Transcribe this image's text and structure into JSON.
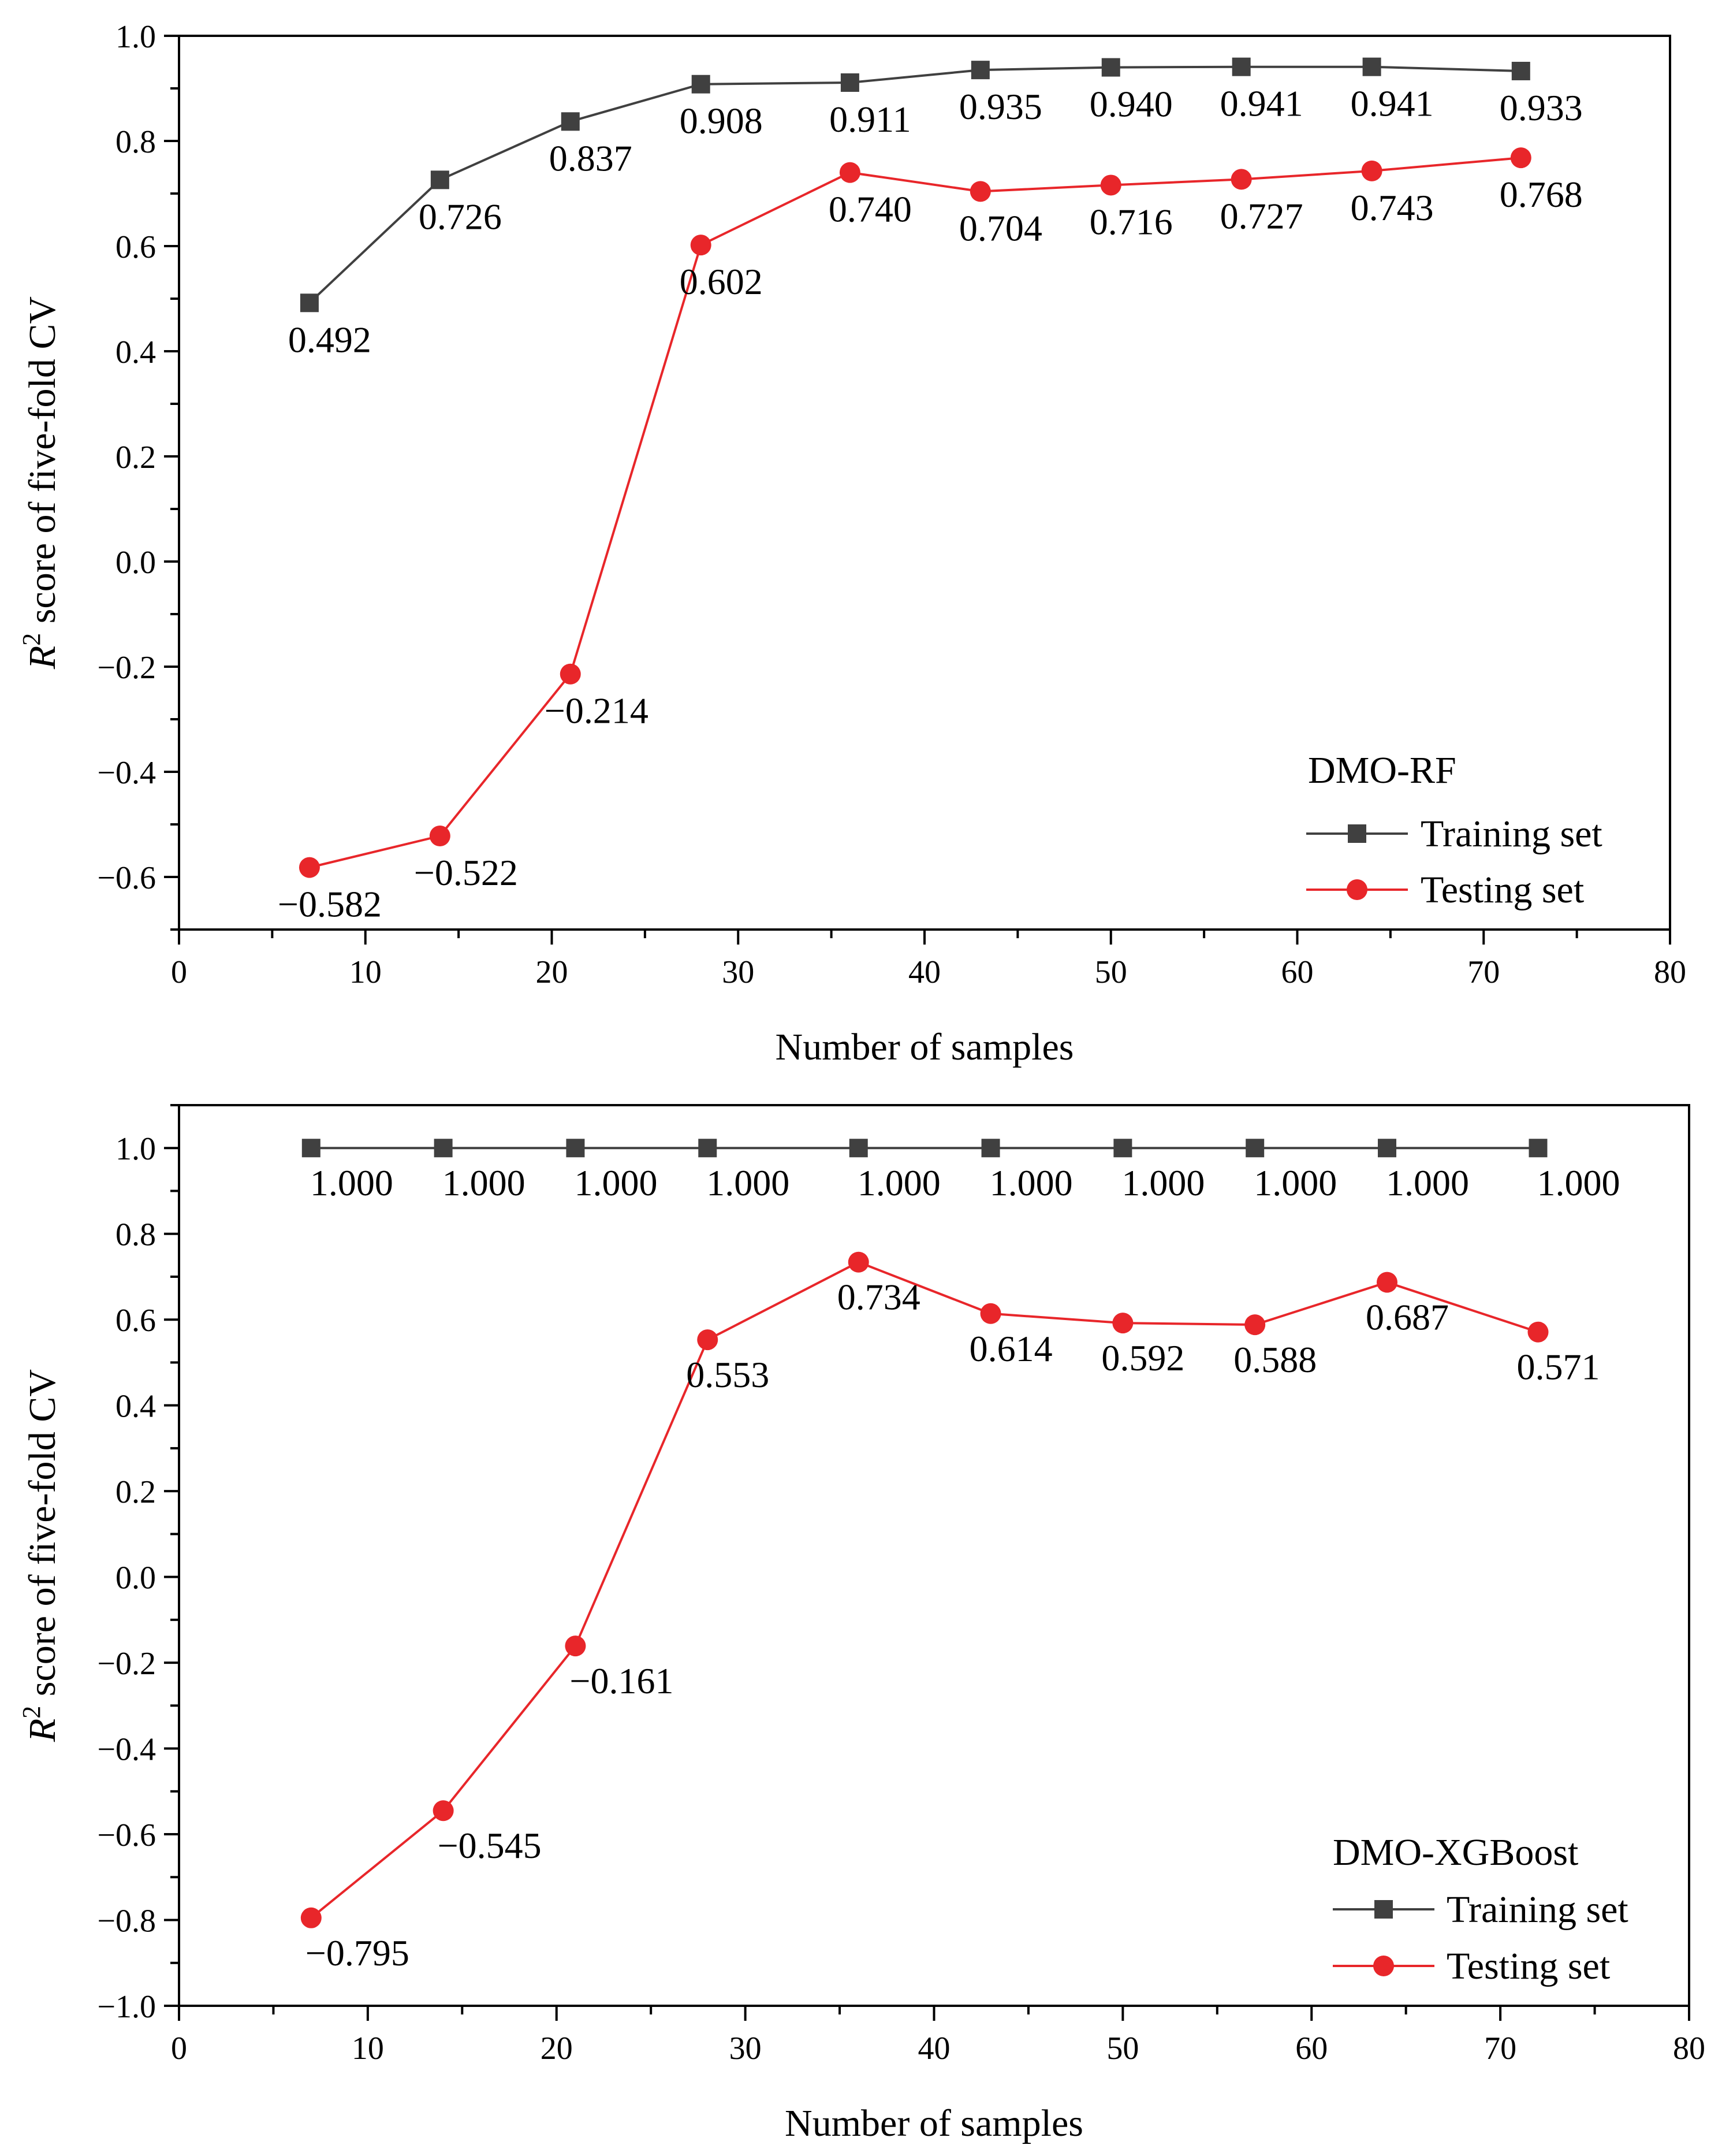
{
  "chart_data": [
    {
      "type": "line",
      "legend_title": "DMO-RF",
      "xlabel": "Number of samples",
      "ylabel_main": "R",
      "ylabel_sup": "2",
      "ylabel_rest": " score of five-fold CV",
      "xlim": [
        0,
        80
      ],
      "ylim": [
        -0.7,
        1.0
      ],
      "x_ticks": [
        0,
        10,
        20,
        30,
        40,
        50,
        60,
        70,
        80
      ],
      "x_tick_labels": [
        "0",
        "10",
        "20",
        "30",
        "40",
        "50",
        "60",
        "70",
        "80"
      ],
      "y_ticks": [
        -0.6,
        -0.4,
        -0.2,
        0.0,
        0.2,
        0.4,
        0.6,
        0.8,
        1.0
      ],
      "y_tick_labels": [
        "−0.6",
        "−0.4",
        "−0.2",
        "0.0",
        "0.2",
        "0.4",
        "0.6",
        "0.8",
        "1.0"
      ],
      "legend_position": "bottom-right",
      "series": [
        {
          "name": "Training set",
          "color": "#404040",
          "marker": "square",
          "x": [
            7,
            14,
            21,
            28,
            36,
            43,
            50,
            57,
            64,
            72
          ],
          "values": [
            0.492,
            0.726,
            0.837,
            0.908,
            0.911,
            0.935,
            0.94,
            0.941,
            0.941,
            0.933
          ],
          "labels": [
            "0.492",
            "0.726",
            "0.837",
            "0.908",
            "0.911",
            "0.935",
            "0.940",
            "0.941",
            "0.941",
            "0.933"
          ]
        },
        {
          "name": "Testing set",
          "color": "#e8262a",
          "marker": "circle",
          "x": [
            7,
            14,
            21,
            28,
            36,
            43,
            50,
            57,
            64,
            72
          ],
          "values": [
            -0.582,
            -0.522,
            -0.214,
            0.602,
            0.74,
            0.704,
            0.716,
            0.727,
            0.743,
            0.768
          ],
          "labels": [
            "−0.582",
            "−0.522",
            "−0.214",
            "0.602",
            "0.740",
            "0.704",
            "0.716",
            "0.727",
            "0.743",
            "0.768"
          ]
        }
      ]
    },
    {
      "type": "line",
      "legend_title": "DMO-XGBoost",
      "xlabel": "Number of samples",
      "ylabel_main": "R",
      "ylabel_sup": "2",
      "ylabel_rest": " score of five-fold CV",
      "xlim": [
        0,
        80
      ],
      "ylim": [
        -1.0,
        1.1
      ],
      "x_ticks": [
        0,
        10,
        20,
        30,
        40,
        50,
        60,
        70,
        80
      ],
      "x_tick_labels": [
        "0",
        "10",
        "20",
        "30",
        "40",
        "50",
        "60",
        "70",
        "80"
      ],
      "y_ticks": [
        -1.0,
        -0.8,
        -0.6,
        -0.4,
        -0.2,
        0.0,
        0.2,
        0.4,
        0.6,
        0.8,
        1.0
      ],
      "y_tick_labels": [
        "−1.0",
        "−0.8",
        "−0.6",
        "−0.4",
        "−0.2",
        "0.0",
        "0.2",
        "0.4",
        "0.6",
        "0.8",
        "1.0"
      ],
      "legend_position": "bottom-right",
      "series": [
        {
          "name": "Training set",
          "color": "#404040",
          "marker": "square",
          "x": [
            7,
            14,
            21,
            28,
            36,
            43,
            50,
            57,
            64,
            72
          ],
          "values": [
            1.0,
            1.0,
            1.0,
            1.0,
            1.0,
            1.0,
            1.0,
            1.0,
            1.0,
            1.0
          ],
          "labels": [
            "1.000",
            "1.000",
            "1.000",
            "1.000",
            "1.000",
            "1.000",
            "1.000",
            "1.000",
            "1.000",
            "1.000"
          ]
        },
        {
          "name": "Testing set",
          "color": "#e8262a",
          "marker": "circle",
          "x": [
            7,
            14,
            21,
            28,
            36,
            43,
            50,
            57,
            64,
            72
          ],
          "values": [
            -0.795,
            -0.545,
            -0.161,
            0.553,
            0.734,
            0.614,
            0.592,
            0.588,
            0.687,
            0.571
          ],
          "labels": [
            "−0.795",
            "−0.545",
            "−0.161",
            "0.553",
            "0.734",
            "0.614",
            "0.592",
            "0.588",
            "0.687",
            "0.571"
          ]
        }
      ]
    }
  ]
}
